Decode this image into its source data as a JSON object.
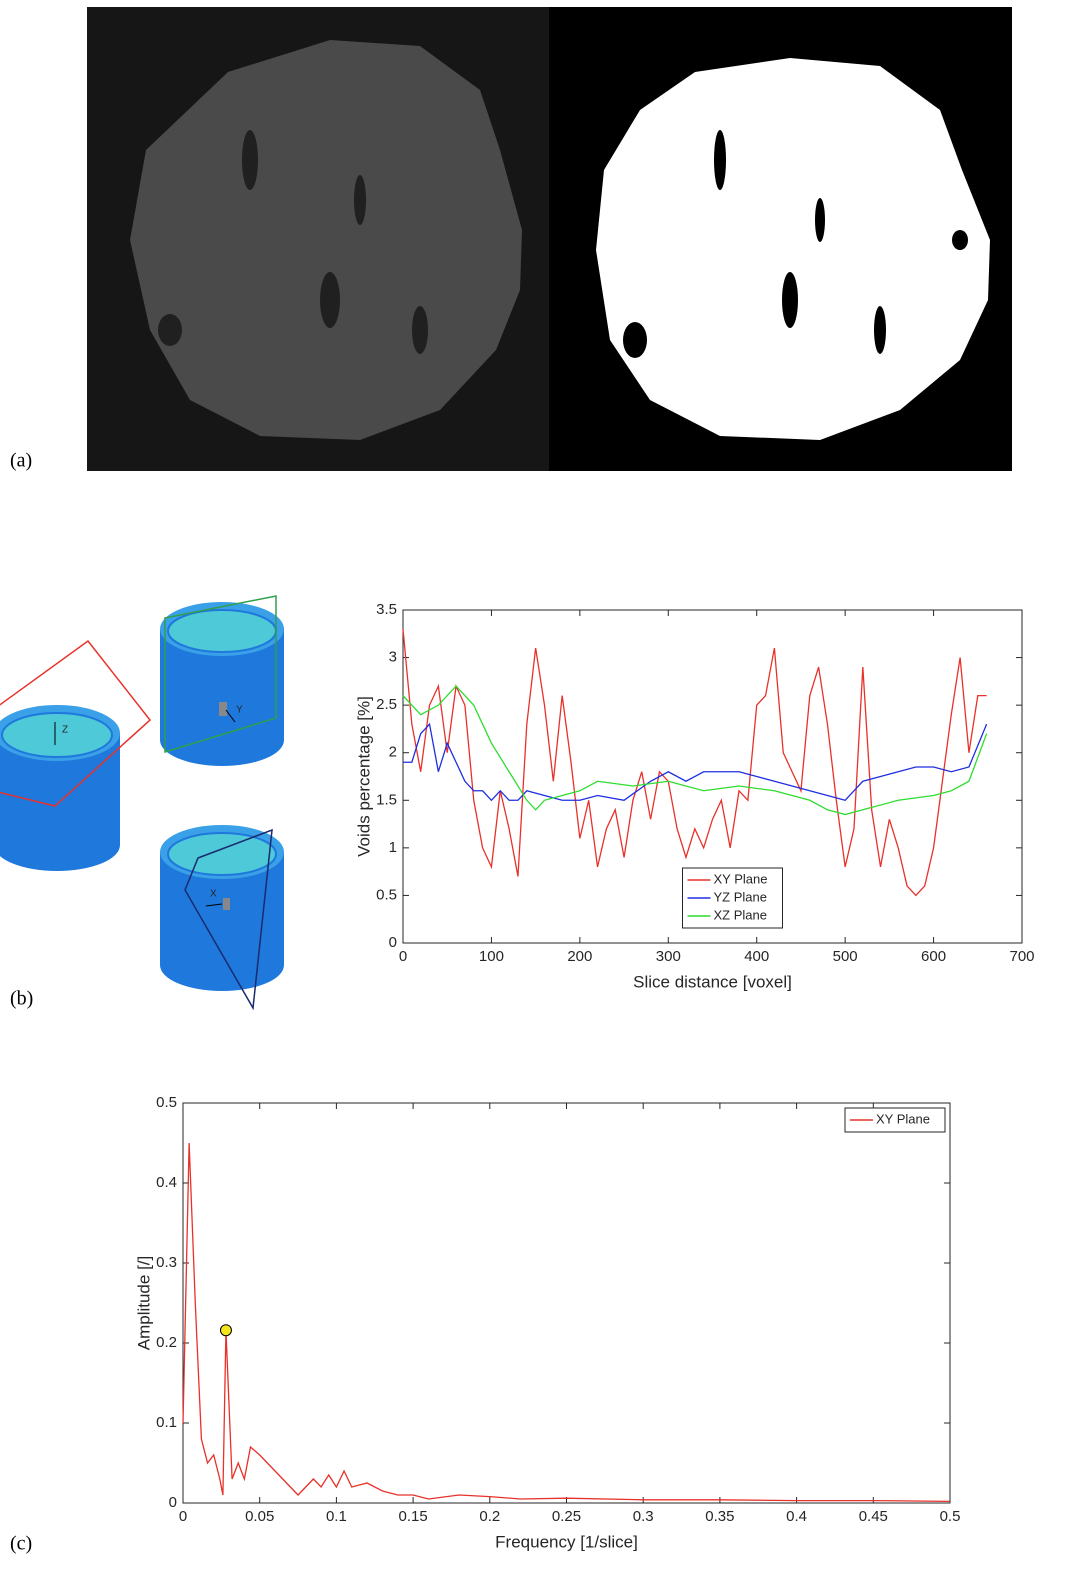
{
  "panels": [
    "(a)",
    "(b)",
    "(c)"
  ],
  "diagram": {
    "axis_labels": [
      "Z",
      "Y",
      "X"
    ]
  },
  "chart_data": [
    {
      "type": "line",
      "xlabel": "Slice distance [voxel]",
      "ylabel": "Voids percentage [%]",
      "xlim": [
        0,
        700
      ],
      "xticks": [
        0,
        100,
        200,
        300,
        400,
        500,
        600,
        700
      ],
      "ylim": [
        0,
        3.5
      ],
      "yticks": [
        0,
        0.5,
        1,
        1.5,
        2,
        2.5,
        3,
        3.5
      ],
      "legend": "lower center",
      "series": [
        {
          "name": "XY Plane",
          "color": "#e8312a",
          "x": [
            0,
            10,
            20,
            30,
            40,
            50,
            60,
            70,
            80,
            90,
            100,
            110,
            120,
            130,
            140,
            150,
            160,
            170,
            180,
            190,
            200,
            210,
            220,
            230,
            240,
            250,
            260,
            270,
            280,
            290,
            300,
            310,
            320,
            330,
            340,
            350,
            360,
            370,
            380,
            390,
            400,
            410,
            420,
            430,
            440,
            450,
            460,
            470,
            480,
            490,
            500,
            510,
            520,
            530,
            540,
            550,
            560,
            570,
            580,
            590,
            600,
            610,
            620,
            630,
            640,
            650,
            660
          ],
          "values": [
            3.3,
            2.3,
            1.8,
            2.5,
            2.7,
            2.0,
            2.7,
            2.5,
            1.5,
            1.0,
            0.8,
            1.6,
            1.2,
            0.7,
            2.3,
            3.1,
            2.5,
            1.7,
            2.6,
            1.9,
            1.1,
            1.5,
            0.8,
            1.2,
            1.4,
            0.9,
            1.5,
            1.8,
            1.3,
            1.8,
            1.7,
            1.2,
            0.9,
            1.2,
            1.0,
            1.3,
            1.5,
            1.0,
            1.6,
            1.5,
            2.5,
            2.6,
            3.1,
            2.0,
            1.8,
            1.6,
            2.6,
            2.9,
            2.3,
            1.5,
            0.8,
            1.2,
            2.9,
            1.4,
            0.8,
            1.3,
            1.0,
            0.6,
            0.5,
            0.6,
            1.0,
            1.7,
            2.4,
            3.0,
            2.0,
            2.6,
            2.6
          ]
        },
        {
          "name": "YZ Plane",
          "color": "#1f2ee0",
          "x": [
            0,
            10,
            20,
            30,
            40,
            50,
            60,
            70,
            80,
            90,
            100,
            110,
            120,
            130,
            140,
            160,
            180,
            200,
            220,
            250,
            280,
            300,
            320,
            340,
            360,
            380,
            400,
            420,
            440,
            460,
            480,
            500,
            520,
            540,
            560,
            580,
            600,
            620,
            640,
            660
          ],
          "values": [
            1.9,
            1.9,
            2.2,
            2.3,
            1.8,
            2.1,
            1.9,
            1.7,
            1.6,
            1.6,
            1.5,
            1.6,
            1.5,
            1.5,
            1.6,
            1.55,
            1.5,
            1.5,
            1.55,
            1.5,
            1.7,
            1.8,
            1.7,
            1.8,
            1.8,
            1.8,
            1.75,
            1.7,
            1.65,
            1.6,
            1.55,
            1.5,
            1.7,
            1.75,
            1.8,
            1.85,
            1.85,
            1.8,
            1.85,
            2.3
          ]
        },
        {
          "name": "XZ Plane",
          "color": "#2fdc2f",
          "x": [
            0,
            20,
            40,
            60,
            80,
            100,
            120,
            140,
            150,
            160,
            200,
            220,
            260,
            300,
            340,
            380,
            420,
            460,
            480,
            500,
            520,
            560,
            600,
            620,
            640,
            660
          ],
          "values": [
            2.6,
            2.4,
            2.5,
            2.7,
            2.5,
            2.1,
            1.8,
            1.5,
            1.4,
            1.5,
            1.6,
            1.7,
            1.65,
            1.7,
            1.6,
            1.65,
            1.6,
            1.5,
            1.4,
            1.35,
            1.4,
            1.5,
            1.55,
            1.6,
            1.7,
            2.2
          ]
        }
      ]
    },
    {
      "type": "line",
      "xlabel": "Frequency [1/slice]",
      "ylabel": "Amplitude [/]",
      "xlim": [
        0,
        0.5
      ],
      "xticks": [
        0,
        0.05,
        0.1,
        0.15,
        0.2,
        0.25,
        0.3,
        0.35,
        0.4,
        0.45,
        0.5
      ],
      "ylim": [
        0,
        0.5
      ],
      "yticks": [
        0,
        0.1,
        0.2,
        0.3,
        0.4,
        0.5
      ],
      "legend": "upper right",
      "highlight": {
        "x": 0.028,
        "value": 0.216,
        "color": "#f5e61c"
      },
      "series": [
        {
          "name": "XY Plane",
          "color": "#e8312a",
          "x": [
            0,
            0.004,
            0.008,
            0.012,
            0.016,
            0.02,
            0.024,
            0.026,
            0.028,
            0.032,
            0.036,
            0.04,
            0.044,
            0.05,
            0.055,
            0.06,
            0.065,
            0.07,
            0.075,
            0.08,
            0.085,
            0.09,
            0.095,
            0.1,
            0.105,
            0.11,
            0.12,
            0.13,
            0.14,
            0.15,
            0.16,
            0.18,
            0.2,
            0.22,
            0.25,
            0.3,
            0.35,
            0.4,
            0.45,
            0.5
          ],
          "values": [
            0.1,
            0.45,
            0.25,
            0.08,
            0.05,
            0.06,
            0.03,
            0.01,
            0.216,
            0.03,
            0.05,
            0.03,
            0.07,
            0.06,
            0.05,
            0.04,
            0.03,
            0.02,
            0.01,
            0.02,
            0.03,
            0.02,
            0.035,
            0.02,
            0.04,
            0.02,
            0.025,
            0.015,
            0.01,
            0.01,
            0.005,
            0.01,
            0.008,
            0.005,
            0.006,
            0.004,
            0.004,
            0.003,
            0.003,
            0.002
          ]
        }
      ]
    }
  ]
}
